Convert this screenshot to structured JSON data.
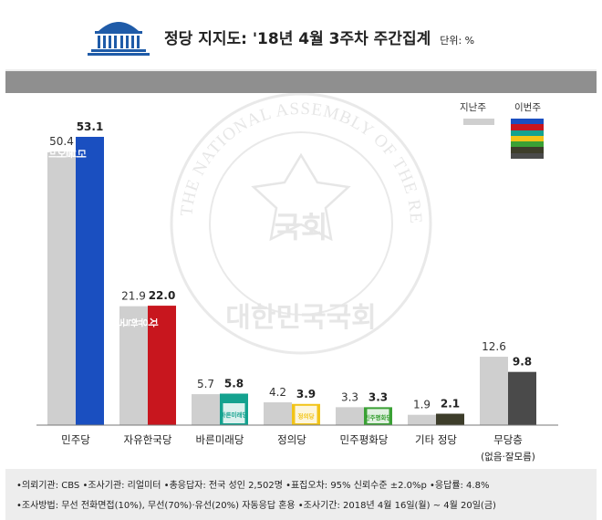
{
  "header": {
    "title": "정당 지지도: '18년 4월 3주차 주간집계",
    "unit": "단위: %"
  },
  "legend": {
    "prev_label": "지난주",
    "curr_label": "이번주"
  },
  "watermark": {
    "ring_text": "THE NATIONAL ASSEMBLY OF THE REPUBLIC OF KOREA",
    "bottom_text": "대한민국국회",
    "seal_text": "국회"
  },
  "chart_data": {
    "type": "bar",
    "categories": [
      "민주당",
      "자유한국당",
      "바른미래당",
      "정의당",
      "민주평화당",
      "기타 정당",
      "무당층"
    ],
    "category_sublabels": [
      "",
      "",
      "",
      "",
      "",
      "",
      "(없음·잘모름)"
    ],
    "series": [
      {
        "name": "지난주",
        "values": [
          50.4,
          21.9,
          5.7,
          4.2,
          3.3,
          1.9,
          12.6
        ],
        "color": "#cfcfcf"
      },
      {
        "name": "이번주",
        "values": [
          53.1,
          22.0,
          5.8,
          3.9,
          3.3,
          2.1,
          9.8
        ],
        "colors": [
          "#1a4fc0",
          "#c8161e",
          "#14a28f",
          "#f2c418",
          "#3aa135",
          "#3d3d2a",
          "#4a4a4a"
        ]
      }
    ],
    "value_labels_prev": [
      "50.4",
      "21.9",
      "5.7",
      "4.2",
      "3.3",
      "1.9",
      "12.6"
    ],
    "value_labels_curr": [
      "53.1",
      "22.0",
      "5.8",
      "3.9",
      "3.3",
      "2.1",
      "9.8"
    ],
    "party_logos": [
      "더불어민주당",
      "자유한국당",
      "바른미래당",
      "정의당",
      "민주평화당",
      "",
      ""
    ],
    "ylim": [
      0,
      60
    ],
    "grid": false,
    "legend_position": "top-right"
  },
  "footer": {
    "line1": "•의뢰기관: CBS  •조사기관: 리얼미터  •총응답자: 전국 성인 2,502명  •표집오차: 95% 신뢰수준 ±2.0%p  •응답률: 4.8%",
    "line2": "•조사방법: 무선 전화면접(10%), 무선(70%)·유선(20%) 자동응답 혼용  •조사기간: 2018년 4월 16일(월) ~ 4월 20일(금)"
  }
}
